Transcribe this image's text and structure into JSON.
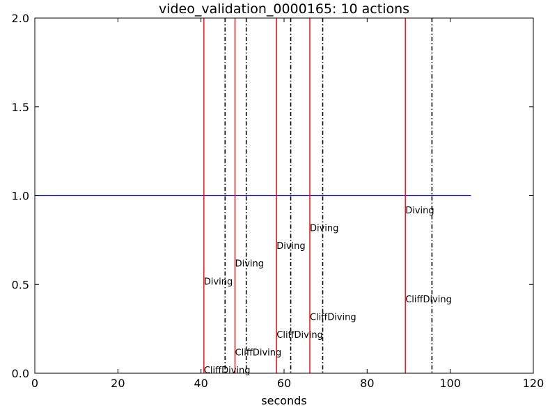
{
  "chart_data": {
    "type": "line",
    "title": "video_validation_0000165: 10 actions",
    "xlabel": "seconds",
    "ylabel": "",
    "xlim": [
      0,
      120
    ],
    "ylim": [
      0,
      2.0
    ],
    "x_ticks": [
      "0",
      "20",
      "40",
      "60",
      "80",
      "100",
      "120"
    ],
    "y_ticks": [
      "0.0",
      "0.5",
      "1.0",
      "1.5",
      "2.0"
    ],
    "grid": false,
    "baseline": {
      "x": [
        0,
        105
      ],
      "y": 1.0,
      "color": "#0000ff"
    },
    "actions": [
      {
        "label": "CliffDiving",
        "start": 40.7,
        "end": 45.8,
        "label_y": 0.0
      },
      {
        "label": "Diving",
        "start": 40.7,
        "end": 45.8,
        "label_y": 0.5
      },
      {
        "label": "CliffDiving",
        "start": 48.2,
        "end": 50.9,
        "label_y": 0.1
      },
      {
        "label": "Diving",
        "start": 48.2,
        "end": 50.9,
        "label_y": 0.6
      },
      {
        "label": "CliffDiving",
        "start": 58.2,
        "end": 61.6,
        "label_y": 0.2
      },
      {
        "label": "Diving",
        "start": 58.2,
        "end": 61.6,
        "label_y": 0.7
      },
      {
        "label": "CliffDiving",
        "start": 66.2,
        "end": 69.3,
        "label_y": 0.3
      },
      {
        "label": "Diving",
        "start": 66.2,
        "end": 69.3,
        "label_y": 0.8
      },
      {
        "label": "CliffDiving",
        "start": 89.2,
        "end": 95.6,
        "label_y": 0.4
      },
      {
        "label": "Diving",
        "start": 89.2,
        "end": 95.6,
        "label_y": 0.9
      }
    ],
    "colors": {
      "start_line": "#ff0000",
      "end_line": "#000000",
      "baseline": "#0000ff"
    }
  }
}
